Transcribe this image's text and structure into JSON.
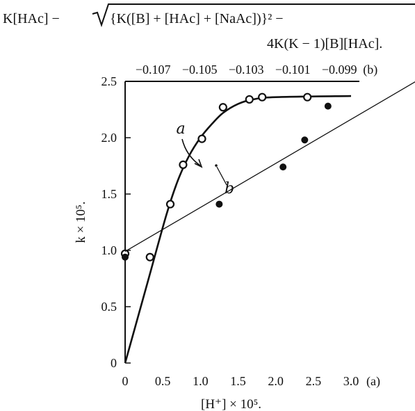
{
  "equation": {
    "line1_part1": "K[HAc] − ",
    "line1_part2": "{K([B] + [HAc] + [NaAc])}² −",
    "line2": "4K(K − 1)[B][HAc]."
  },
  "chart_data": {
    "type": "scatter",
    "xlabel": "[H⁺] × 10⁵.",
    "ylabel": "k × 10⁵.",
    "xlim": [
      0,
      3.0
    ],
    "ylim": [
      0,
      2.5
    ],
    "grid": false,
    "bottom_axis": {
      "ticks": [
        0,
        0.5,
        1.0,
        1.5,
        2.0,
        2.5,
        3.0
      ],
      "tick_labels": [
        "0",
        "0.5",
        "1.0",
        "1.5",
        "2.0",
        "2.5",
        "3.0"
      ],
      "axis_tag": "(a)"
    },
    "top_axis": {
      "ticks": [
        -0.107,
        -0.105,
        -0.103,
        -0.101,
        -0.099
      ],
      "tick_labels": [
        "−0.107",
        "−0.105",
        "−0.103",
        "−0.101",
        "−0.099"
      ],
      "axis_tag": "(b)",
      "range": [
        -0.1082,
        -0.0985
      ]
    },
    "y_ticks": [
      0,
      0.5,
      1.0,
      1.5,
      2.0,
      2.5
    ],
    "y_tick_labels": [
      "0",
      "0.5",
      "1.0",
      "1.5",
      "2.0",
      "2.5"
    ],
    "series": [
      {
        "name": "a",
        "marker": "open-circle",
        "x": [
          0,
          0.33,
          0.6,
          0.77,
          1.02,
          1.3,
          1.65,
          1.82,
          2.42
        ],
        "y": [
          0.97,
          0.94,
          1.41,
          1.76,
          1.99,
          2.27,
          2.34,
          2.36,
          2.36
        ],
        "curve": [
          [
            0,
            0
          ],
          [
            0.3,
            0.72
          ],
          [
            0.55,
            1.32
          ],
          [
            0.7,
            1.62
          ],
          [
            0.85,
            1.84
          ],
          [
            1.0,
            2.0
          ],
          [
            1.15,
            2.12
          ],
          [
            1.3,
            2.22
          ],
          [
            1.5,
            2.3
          ],
          [
            1.7,
            2.34
          ],
          [
            2.0,
            2.36
          ],
          [
            3.0,
            2.37
          ]
        ]
      },
      {
        "name": "b",
        "marker": "filled-circle",
        "x": [
          -0.1082,
          -0.10416,
          -0.10142,
          -0.10049,
          -0.09949
        ],
        "y": [
          0.94,
          1.41,
          1.74,
          1.98,
          2.28
        ],
        "line": [
          [
            -0.1082,
            0.99
          ],
          [
            -0.0953,
            2.55
          ]
        ]
      }
    ],
    "annotations": [
      {
        "text": "a",
        "target": "series-a"
      },
      {
        "text": "b",
        "target": "series-b"
      }
    ]
  }
}
